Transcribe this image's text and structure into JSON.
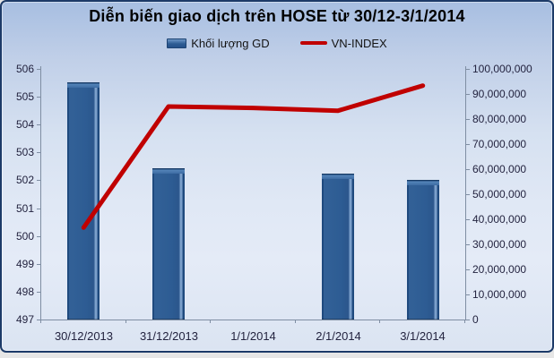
{
  "title": "Diễn biến giao dịch trên HOSE từ 30/12-3/1/2014",
  "legend": {
    "volume_label": "Khối lượng GD",
    "index_label": "VN-INDEX"
  },
  "colors": {
    "bar": "#2d5c93",
    "bar_edge": "#1d4373",
    "line": "#c00000",
    "axis": "#7f8ea3",
    "text": "#23233f",
    "frame_border": "#1c3a68"
  },
  "chart_data": {
    "type": "bar",
    "title": "Diễn biến giao dịch trên HOSE từ 30/12-3/1/2014",
    "categories": [
      "30/12/2013",
      "31/12/2013",
      "1/1/2014",
      "2/1/2014",
      "3/1/2014"
    ],
    "series": [
      {
        "name": "Khối lượng GD",
        "type": "bar",
        "axis": "right",
        "color": "#2d5c93",
        "values": [
          94600000,
          60300000,
          null,
          58200000,
          55700000
        ]
      },
      {
        "name": "VN-INDEX",
        "type": "line",
        "axis": "left",
        "color": "#c00000",
        "values": [
          500.3,
          504.65,
          504.6,
          504.5,
          505.4
        ]
      }
    ],
    "left_axis": {
      "min": 497,
      "max": 506,
      "step": 1,
      "tick_labels": [
        "506",
        "505",
        "504",
        "503",
        "502",
        "501",
        "500",
        "499",
        "498",
        "497"
      ]
    },
    "right_axis": {
      "min": 0,
      "max": 100000000,
      "step": 10000000,
      "tick_labels": [
        "100,000,000",
        "90,000,000",
        "80,000,000",
        "70,000,000",
        "60,000,000",
        "50,000,000",
        "40,000,000",
        "30,000,000",
        "20,000,000",
        "10,000,000",
        "0"
      ]
    },
    "grid": false,
    "legend_position": "top"
  }
}
